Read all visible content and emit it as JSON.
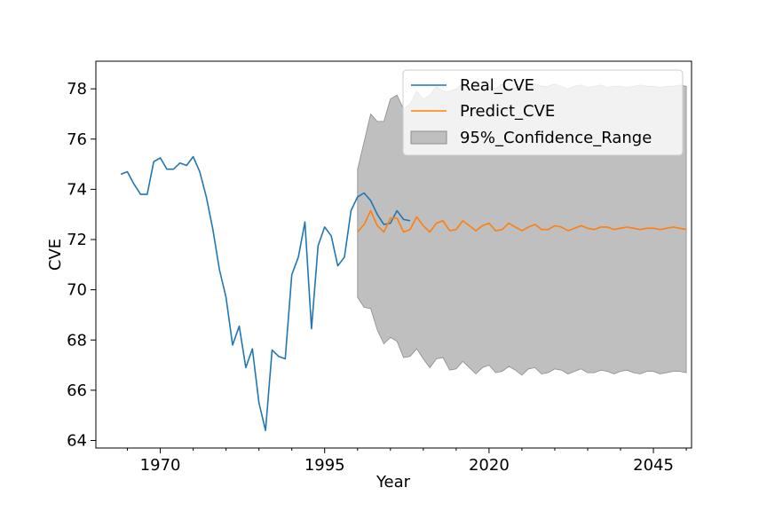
{
  "chart_data": {
    "type": "line",
    "title": "",
    "xlabel": "Year",
    "ylabel": "CVE",
    "xlim": [
      1960.2,
      2050.8
    ],
    "ylim": [
      63.7,
      79.1
    ],
    "x_ticks": [
      1970,
      1995,
      2020,
      2045
    ],
    "x_minor_ticks": [
      1965,
      1975,
      1980,
      1985,
      1990,
      2000,
      2005,
      2010,
      2015,
      2025,
      2030,
      2035,
      2040,
      2050
    ],
    "y_ticks": [
      64,
      66,
      68,
      70,
      72,
      74,
      76,
      78
    ],
    "grid": false,
    "legend_position": "upper-right",
    "colors": {
      "real": "#1f77b4",
      "predict": "#ff7f0e",
      "confidence_fill": "#bfbfbf",
      "confidence_edge": "#8c8c8c"
    },
    "series": [
      {
        "name": "Real_CVE",
        "kind": "line",
        "x": [
          1964,
          1965,
          1966,
          1967,
          1968,
          1969,
          1970,
          1971,
          1972,
          1973,
          1974,
          1975,
          1976,
          1977,
          1978,
          1979,
          1980,
          1981,
          1982,
          1983,
          1984,
          1985,
          1986,
          1987,
          1988,
          1989,
          1990,
          1991,
          1992,
          1993,
          1994,
          1995,
          1996,
          1997,
          1998,
          1999,
          2000,
          2001,
          2002,
          2003,
          2004,
          2005,
          2006,
          2007,
          2008
        ],
        "y": [
          74.6,
          74.7,
          74.2,
          73.8,
          73.8,
          75.1,
          75.25,
          74.8,
          74.8,
          75.05,
          74.95,
          75.3,
          74.7,
          73.7,
          72.4,
          70.8,
          69.7,
          67.8,
          68.55,
          66.9,
          67.65,
          65.5,
          64.4,
          67.6,
          67.35,
          67.25,
          70.6,
          71.3,
          72.7,
          68.45,
          71.75,
          72.5,
          72.15,
          70.95,
          71.3,
          73.15,
          73.7,
          73.85,
          73.55,
          73.0,
          72.6,
          72.65,
          73.15,
          72.8,
          72.75
        ]
      },
      {
        "name": "Predict_CVE",
        "kind": "line",
        "x": [
          2000,
          2001,
          2002,
          2003,
          2004,
          2005,
          2006,
          2007,
          2008,
          2009,
          2010,
          2011,
          2012,
          2013,
          2014,
          2015,
          2016,
          2017,
          2018,
          2019,
          2020,
          2021,
          2022,
          2023,
          2024,
          2025,
          2026,
          2027,
          2028,
          2029,
          2030,
          2031,
          2032,
          2033,
          2034,
          2035,
          2036,
          2037,
          2038,
          2039,
          2040,
          2041,
          2042,
          2043,
          2044,
          2045,
          2046,
          2047,
          2048,
          2049,
          2050
        ],
        "y": [
          72.3,
          72.6,
          73.15,
          72.55,
          72.3,
          72.85,
          72.85,
          72.3,
          72.4,
          72.9,
          72.55,
          72.3,
          72.65,
          72.75,
          72.35,
          72.4,
          72.75,
          72.55,
          72.35,
          72.55,
          72.65,
          72.35,
          72.4,
          72.65,
          72.5,
          72.35,
          72.5,
          72.6,
          72.4,
          72.4,
          72.55,
          72.5,
          72.35,
          72.45,
          72.55,
          72.45,
          72.4,
          72.5,
          72.5,
          72.4,
          72.45,
          72.5,
          72.45,
          72.4,
          72.45,
          72.45,
          72.4,
          72.45,
          72.5,
          72.45,
          72.4
        ]
      },
      {
        "name": "95%_Confidence_Range",
        "kind": "band",
        "x": [
          2000,
          2001,
          2002,
          2003,
          2004,
          2005,
          2006,
          2007,
          2008,
          2009,
          2010,
          2011,
          2012,
          2013,
          2014,
          2015,
          2016,
          2017,
          2018,
          2019,
          2020,
          2021,
          2022,
          2023,
          2024,
          2025,
          2026,
          2027,
          2028,
          2029,
          2030,
          2031,
          2032,
          2033,
          2034,
          2035,
          2036,
          2037,
          2038,
          2039,
          2040,
          2041,
          2042,
          2043,
          2044,
          2045,
          2046,
          2047,
          2048,
          2049,
          2050
        ],
        "upper": [
          74.8,
          75.9,
          77.0,
          76.7,
          76.7,
          77.6,
          77.75,
          77.2,
          77.4,
          77.9,
          77.6,
          77.75,
          78.1,
          77.9,
          77.9,
          78.0,
          78.2,
          78.0,
          77.95,
          78.15,
          78.1,
          78.0,
          78.2,
          78.0,
          78.05,
          78.15,
          78.0,
          78.2,
          78.1,
          78.1,
          78.2,
          78.1,
          78.0,
          78.1,
          78.15,
          78.05,
          78.1,
          78.15,
          78.05,
          78.1,
          78.1,
          78.05,
          78.1,
          78.15,
          78.1,
          78.1,
          78.05,
          78.1,
          78.1,
          78.15,
          78.1
        ],
        "lower": [
          69.7,
          69.3,
          69.25,
          68.4,
          67.85,
          68.1,
          67.95,
          67.3,
          67.35,
          67.65,
          67.25,
          66.9,
          67.25,
          67.3,
          66.8,
          66.85,
          67.15,
          66.9,
          66.65,
          66.9,
          67.0,
          66.7,
          66.75,
          66.95,
          66.8,
          66.6,
          66.85,
          66.9,
          66.65,
          66.7,
          66.85,
          66.8,
          66.65,
          66.75,
          66.85,
          66.7,
          66.7,
          66.8,
          66.75,
          66.65,
          66.75,
          66.8,
          66.7,
          66.65,
          66.75,
          66.75,
          66.65,
          66.7,
          66.75,
          66.75,
          66.7
        ]
      }
    ]
  }
}
